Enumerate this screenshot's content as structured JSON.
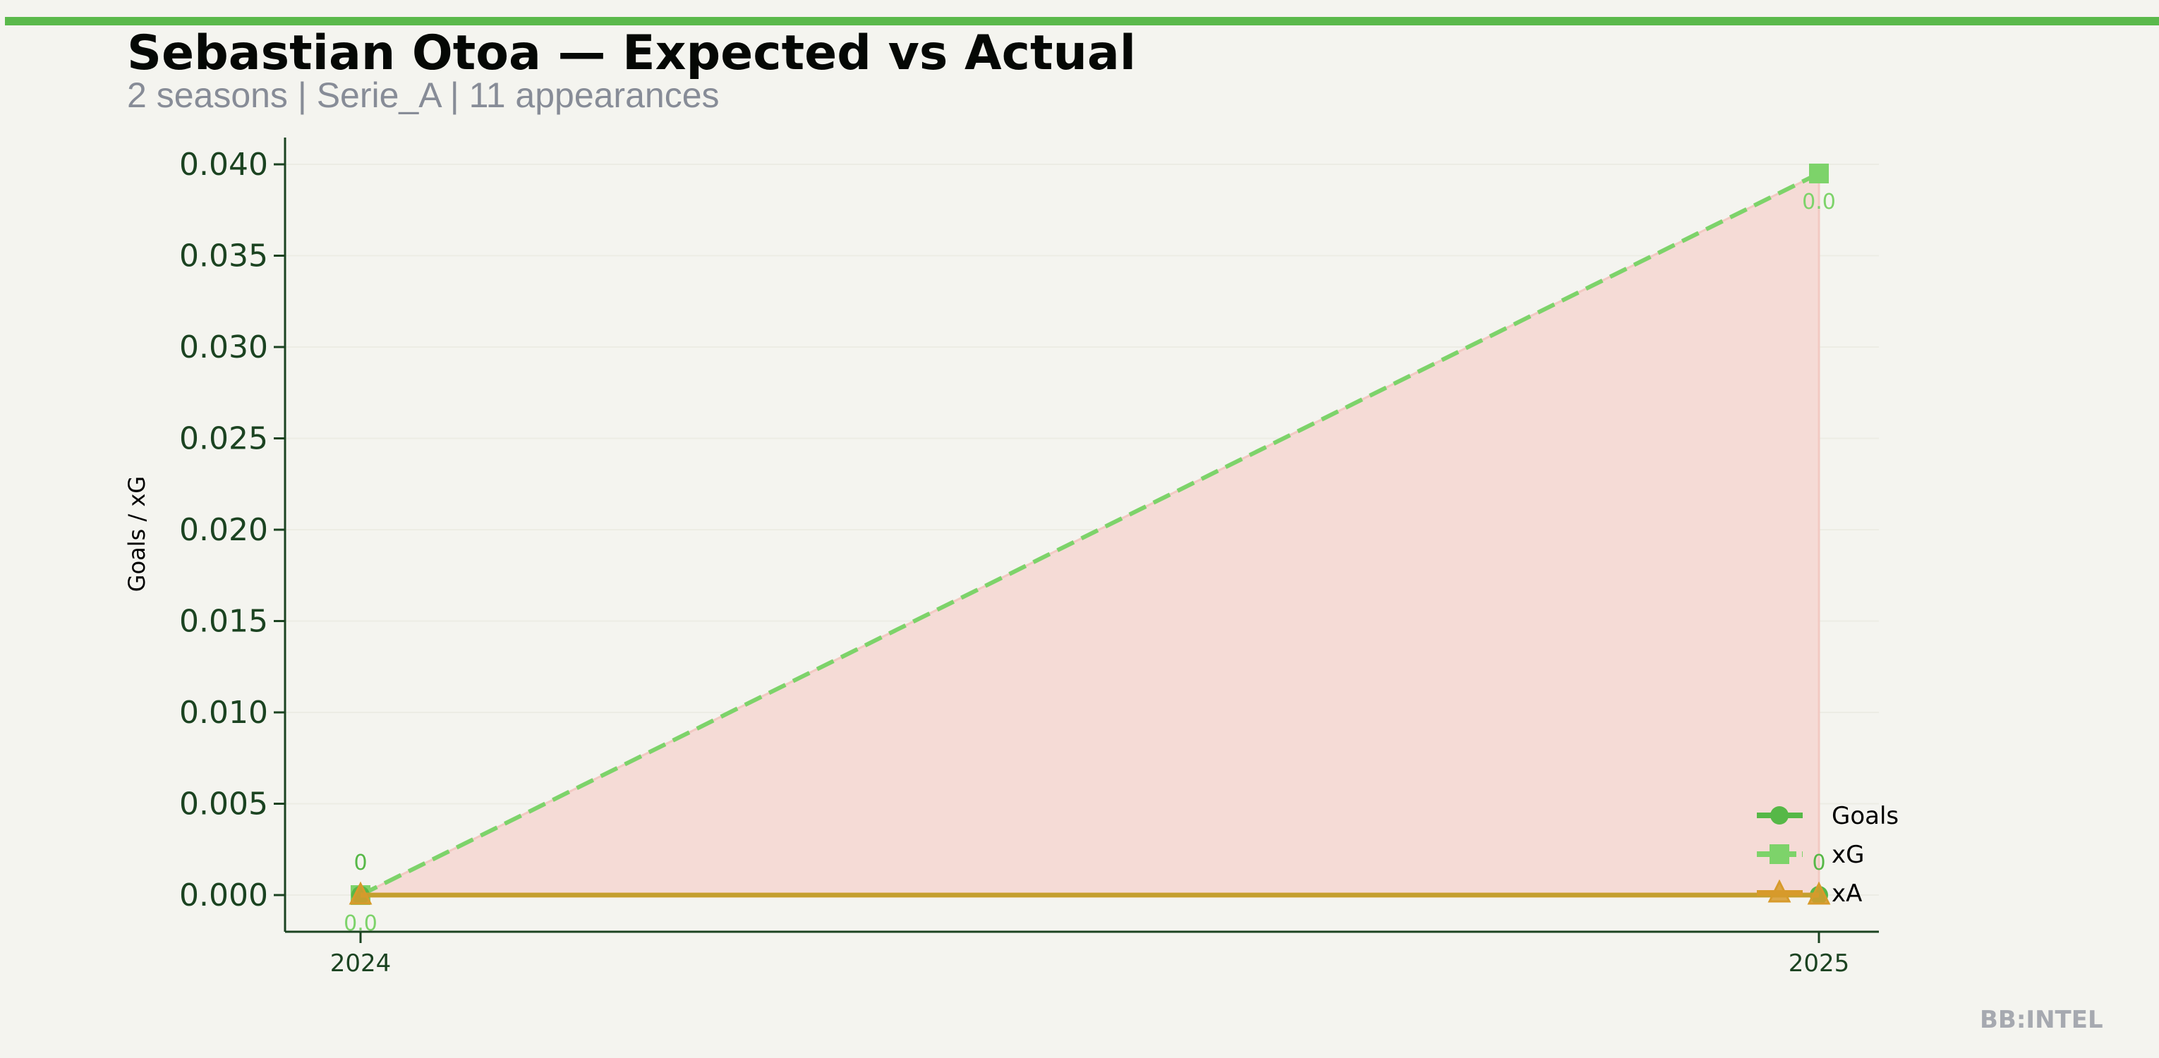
{
  "header": {
    "title": "Sebastian Otoa — Expected vs Actual",
    "subtitle": "2 seasons | Serie_A | 11 appearances"
  },
  "watermark": "BB:INTEL",
  "colors": {
    "accent": "#5ab94b",
    "goals": "#56b847",
    "xg": "#7dd36a",
    "xa": "#d79a2b",
    "fill": "#f5dbd6",
    "axis": "#1b4321"
  },
  "chart_data": {
    "type": "line",
    "title": "",
    "xlabel": "",
    "ylabel": "Goals / xG",
    "categories": [
      "2024",
      "2025"
    ],
    "ylim": [
      -0.002,
      0.0415
    ],
    "yticks": [
      "0.000",
      "0.005",
      "0.010",
      "0.015",
      "0.020",
      "0.025",
      "0.030",
      "0.035",
      "0.040"
    ],
    "grid": true,
    "legend_position": "bottom-right",
    "series": [
      {
        "name": "Goals",
        "values": [
          0,
          0
        ],
        "marker": "circle",
        "style": "solid",
        "labels": [
          "0",
          "0"
        ]
      },
      {
        "name": "xG",
        "values": [
          0,
          0.0395
        ],
        "marker": "square",
        "style": "dashed",
        "labels": [
          "0.0",
          "0.0"
        ]
      },
      {
        "name": "xA",
        "values": [
          0,
          0
        ],
        "marker": "triangle",
        "style": "solid"
      }
    ],
    "fill_between": "Goals-xG (xG above)"
  }
}
